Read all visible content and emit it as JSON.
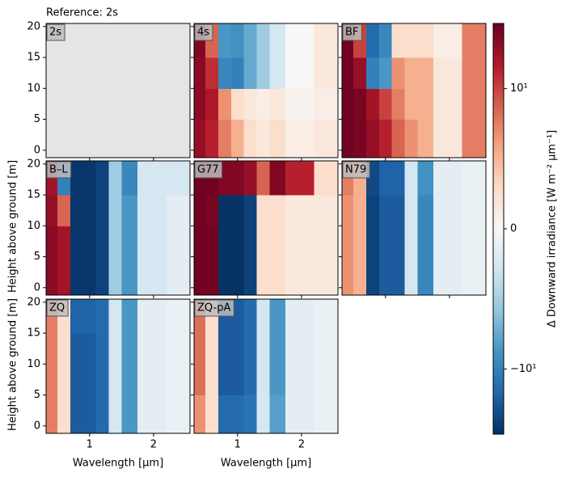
{
  "chart_data": {
    "type": "heatmap",
    "title": "Reference: 2s",
    "xlabel": "Wavelength [µm]",
    "ylabel": "Height above ground [m]",
    "xlim": [
      0.32,
      2.57
    ],
    "ylim": [
      -1.2,
      20.5
    ],
    "xticks": [
      1,
      2
    ],
    "yticks": [
      0,
      5,
      10,
      15,
      20
    ],
    "x_edges": [
      0.32,
      0.5,
      0.7,
      0.9,
      1.1,
      1.3,
      1.5,
      1.75,
      2.2,
      2.57
    ],
    "y_edges": [
      -1.2,
      5,
      10,
      15,
      20.5
    ],
    "missing_color": "#e5e5e5",
    "cmap": [
      "#053061",
      "#2166ac",
      "#4393c3",
      "#92c5de",
      "#d1e5f0",
      "#f7f7f7",
      "#fddbc7",
      "#f4a582",
      "#d6604d",
      "#b2182b",
      "#67001f"
    ],
    "panels": [
      {
        "name": "2s",
        "values": null
      },
      {
        "name": "4s",
        "values": [
          [
            40,
            20,
            3,
            1,
            0.5,
            0.3,
            0.5,
            0.2,
            0.3
          ],
          [
            50,
            25,
            2,
            0.5,
            0.3,
            0.2,
            0.3,
            0.1,
            0.2
          ],
          [
            50,
            15,
            -8,
            -10,
            -3,
            -1,
            -0.5,
            0,
            0.3
          ],
          [
            60,
            5,
            -5,
            -6,
            -3,
            -1,
            -0.5,
            0,
            0.3
          ]
        ]
      },
      {
        "name": "BF",
        "values": [
          [
            80,
            70,
            40,
            20,
            5,
            2,
            1,
            0.3,
            3
          ],
          [
            80,
            70,
            30,
            10,
            3,
            1,
            1,
            0.3,
            3
          ],
          [
            80,
            40,
            -10,
            -5,
            2,
            1,
            1,
            0.3,
            3
          ],
          [
            80,
            10,
            -20,
            -8,
            0.5,
            0.5,
            0.5,
            0.2,
            3
          ]
        ]
      },
      {
        "name": "B–L",
        "values": [
          [
            50,
            30,
            -80,
            -80,
            -60,
            -1,
            -5,
            -0.5,
            -0.3
          ],
          [
            50,
            30,
            -80,
            -80,
            -60,
            -1,
            -5,
            -0.5,
            -0.3
          ],
          [
            40,
            5,
            -80,
            -80,
            -60,
            -1,
            -5,
            -0.5,
            -0.3
          ],
          [
            30,
            -10,
            -80,
            -80,
            -60,
            -1,
            -8,
            -0.5,
            -0.5
          ]
        ]
      },
      {
        "name": "G77",
        "values": [
          [
            80,
            80,
            -90,
            -90,
            -60,
            0.5,
            0.5,
            0.3,
            0.3
          ],
          [
            80,
            80,
            -90,
            -90,
            -60,
            0.5,
            0.5,
            0.3,
            0.3
          ],
          [
            80,
            70,
            -90,
            -90,
            -60,
            0.5,
            0.5,
            0.3,
            0.3
          ],
          [
            80,
            80,
            60,
            60,
            40,
            5,
            60,
            20,
            0.5
          ]
        ]
      },
      {
        "name": "N79",
        "values": [
          [
            2,
            1,
            -60,
            -30,
            -30,
            -0.5,
            -8,
            -0.3,
            -0.2
          ],
          [
            2,
            1,
            -60,
            -30,
            -30,
            -0.5,
            -8,
            -0.3,
            -0.2
          ],
          [
            2,
            1,
            -60,
            -30,
            -30,
            -0.5,
            -8,
            -0.3,
            -0.2
          ],
          [
            3,
            1,
            -50,
            -25,
            -25,
            -0.5,
            -6,
            -0.3,
            -0.2
          ]
        ]
      },
      {
        "name": "ZQ",
        "values": [
          [
            3,
            0.5,
            -30,
            -30,
            -20,
            -0.5,
            -5,
            -0.3,
            -0.2
          ],
          [
            3,
            0.5,
            -30,
            -30,
            -20,
            -0.5,
            -5,
            -0.3,
            -0.2
          ],
          [
            3,
            0.5,
            -30,
            -30,
            -20,
            -0.5,
            -5,
            -0.3,
            -0.2
          ],
          [
            3,
            0.5,
            -25,
            -25,
            -20,
            -0.5,
            -5,
            -0.3,
            -0.2
          ]
        ]
      },
      {
        "name": "ZQ-pA",
        "values": [
          [
            2,
            0.5,
            -20,
            -20,
            -15,
            -0.5,
            -4,
            -0.3,
            -0.2
          ],
          [
            4,
            0.5,
            -30,
            -30,
            -20,
            -0.5,
            -5,
            -0.3,
            -0.2
          ],
          [
            4,
            0.5,
            -30,
            -30,
            -20,
            -0.5,
            -5,
            -0.3,
            -0.2
          ],
          [
            4,
            0.5,
            -30,
            -30,
            -20,
            -0.5,
            -5,
            -0.3,
            -0.2
          ]
        ]
      }
    ],
    "colorbar": {
      "label": "Δ Downward irradiance [W m⁻² µm⁻¹]",
      "vlim": [
        -96,
        96
      ],
      "linthresh": 1,
      "ticks": [
        {
          "value": 10,
          "label": "10¹"
        },
        0,
        {
          "value": -10,
          "label": "−10¹"
        }
      ]
    }
  }
}
